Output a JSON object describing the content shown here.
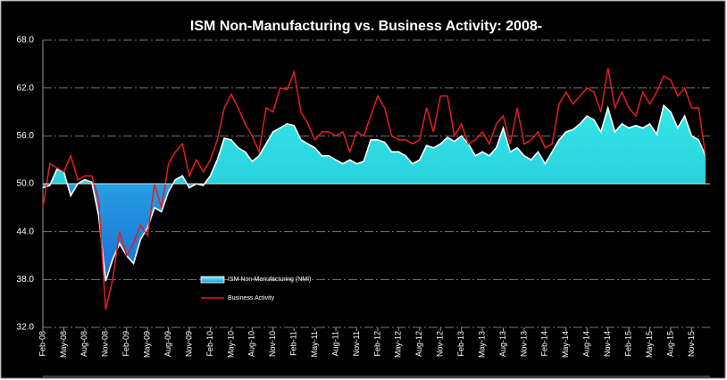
{
  "chart_data": {
    "type": "area-line",
    "title": "ISM Non-Manufacturing vs. Business Activity: 2008-",
    "categories": [
      "Feb-08",
      null,
      null,
      "May-08",
      null,
      null,
      "Aug-08",
      null,
      null,
      "Nov-08",
      null,
      null,
      "Feb-09",
      null,
      null,
      "May-09",
      null,
      null,
      "Aug-09",
      null,
      null,
      "Nov-09",
      null,
      null,
      "Feb-10",
      null,
      null,
      "May-10",
      null,
      null,
      "Aug-10",
      null,
      null,
      "Nov-10",
      null,
      null,
      "Feb-11",
      null,
      null,
      "May-11",
      null,
      null,
      "Aug-11",
      null,
      null,
      "Nov-11",
      null,
      null,
      "Feb-12",
      null,
      null,
      "May-12",
      null,
      null,
      "Aug-12",
      null,
      null,
      "Nov-12",
      null,
      null,
      "Feb-13",
      null,
      null,
      "May-13",
      null,
      null,
      "Aug-13",
      null,
      null,
      "Nov-13",
      null,
      null,
      "Feb-14",
      null,
      null,
      "May-14",
      null,
      null,
      "Aug-14",
      null,
      null,
      "Nov-14",
      null,
      null,
      "Feb-15",
      null,
      null,
      "May-15",
      null,
      null,
      "Aug-15",
      null,
      null,
      "Nov-15",
      null,
      null
    ],
    "series": [
      {
        "name": "ISM Non-Manufacturing (NMI)",
        "color": "#33d6e0",
        "negative_color": "#1e8fe0",
        "type": "area",
        "values": [
          49.5,
          49.8,
          51.8,
          51.5,
          48.5,
          50.0,
          50.5,
          50.2,
          46.0,
          37.8,
          40.5,
          42.5,
          41.0,
          40.0,
          43.0,
          44.5,
          47.0,
          46.5,
          49.0,
          50.5,
          51.0,
          49.5,
          50.0,
          49.8,
          51.0,
          53.0,
          55.7,
          55.5,
          54.5,
          54.0,
          52.8,
          53.5,
          55.0,
          56.5,
          57.0,
          57.5,
          57.3,
          55.5,
          55.0,
          54.5,
          53.5,
          53.5,
          53.0,
          52.5,
          53.0,
          52.5,
          52.8,
          55.5,
          55.5,
          55.2,
          54.0,
          54.0,
          53.5,
          52.5,
          53.0,
          54.8,
          54.5,
          55.0,
          55.8,
          55.3,
          56.0,
          55.0,
          53.5,
          54.0,
          53.5,
          54.5,
          57.0,
          54.0,
          54.5,
          53.5,
          53.0,
          54.0,
          52.5,
          54.0,
          55.5,
          56.5,
          56.8,
          57.5,
          58.5,
          58.0,
          56.5,
          59.5,
          56.5,
          57.5,
          57.0,
          57.3,
          57.0,
          57.5,
          56.2,
          59.8,
          59.0,
          57.0,
          58.5,
          56.0,
          55.5,
          53.5
        ]
      },
      {
        "name": "Business Activity",
        "color": "#e0201a",
        "type": "line",
        "values": [
          47.0,
          52.5,
          52.0,
          51.5,
          53.5,
          50.5,
          51.0,
          51.0,
          48.0,
          34.2,
          38.0,
          44.0,
          41.0,
          42.5,
          44.8,
          43.5,
          50.0,
          47.0,
          52.5,
          54.0,
          55.0,
          51.0,
          53.0,
          51.5,
          53.0,
          55.5,
          59.5,
          61.2,
          59.5,
          57.5,
          56.0,
          54.0,
          59.5,
          59.0,
          62.0,
          61.8,
          64.0,
          59.0,
          57.5,
          55.5,
          56.5,
          56.5,
          56.0,
          56.5,
          54.0,
          56.5,
          56.0,
          58.5,
          61.0,
          59.5,
          56.0,
          55.5,
          55.5,
          55.0,
          55.5,
          59.5,
          56.5,
          61.0,
          61.0,
          56.0,
          57.5,
          55.0,
          55.5,
          56.5,
          55.0,
          57.5,
          58.5,
          55.0,
          59.5,
          55.0,
          55.5,
          56.5,
          54.5,
          55.0,
          60.0,
          61.5,
          60.0,
          61.0,
          62.0,
          61.5,
          59.0,
          64.5,
          59.5,
          61.5,
          59.5,
          58.5,
          61.5,
          60.0,
          61.5,
          63.5,
          63.0,
          61.0,
          62.0,
          59.5,
          59.5,
          53.5
        ]
      }
    ],
    "ylim": [
      32,
      68
    ],
    "yticks": [
      {
        "value": 32,
        "label": "32.0"
      },
      {
        "value": 38,
        "label": "38.0"
      },
      {
        "value": 44,
        "label": "44.0"
      },
      {
        "value": 50,
        "label": "50.0"
      },
      {
        "value": 56,
        "label": "56.0"
      },
      {
        "value": 62,
        "label": "62.0"
      },
      {
        "value": 68,
        "label": "68.0"
      }
    ],
    "x_axis_crosses": 50,
    "grid": true
  }
}
